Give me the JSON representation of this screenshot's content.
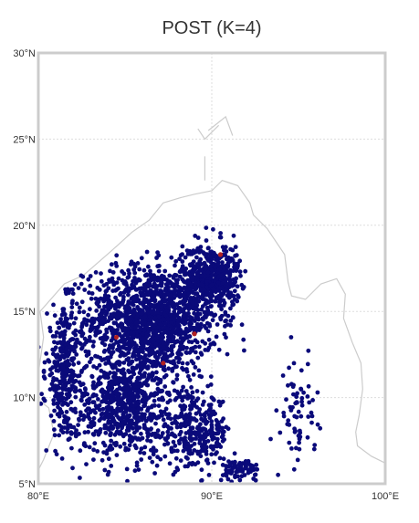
{
  "title": "POST (K=4)",
  "chart_data": {
    "type": "scatter",
    "title": "POST (K=4)",
    "projection": "plate carree map",
    "xlim": [
      80,
      100
    ],
    "ylim": [
      5,
      30
    ],
    "xticks": [
      80,
      90,
      100
    ],
    "xtick_labels": [
      "80°E",
      "90°E",
      "100°E"
    ],
    "yticks": [
      5,
      10,
      15,
      20,
      25,
      30
    ],
    "ytick_labels": [
      "5°N",
      "10°N",
      "15°N",
      "20°N",
      "25°N",
      "30°N"
    ],
    "grid": true,
    "point_color": "#0a0a7a",
    "centroid_color": "#b22222",
    "coastline_color": "#cccccc",
    "frame_color": "#cccccc",
    "centroids": [
      {
        "lon": 90.5,
        "lat": 18.3
      },
      {
        "lon": 89.0,
        "lat": 13.7
      },
      {
        "lon": 87.2,
        "lat": 12.0
      },
      {
        "lon": 84.5,
        "lat": 13.5
      }
    ],
    "clusters": [
      {
        "lon": 86.5,
        "lat": 14.5,
        "spread": [
          3.2,
          2.6
        ],
        "n": 1400
      },
      {
        "lon": 90.0,
        "lat": 17.0,
        "spread": [
          1.4,
          1.6
        ],
        "n": 500
      },
      {
        "lon": 85.0,
        "lat": 9.5,
        "spread": [
          2.5,
          2.5
        ],
        "n": 700
      },
      {
        "lon": 81.5,
        "lat": 11.5,
        "spread": [
          0.9,
          3.0
        ],
        "n": 300
      },
      {
        "lon": 89.0,
        "lat": 8.0,
        "spread": [
          1.8,
          1.8
        ],
        "n": 300
      },
      {
        "lon": 95.0,
        "lat": 9.0,
        "spread": [
          0.8,
          2.5
        ],
        "n": 70
      },
      {
        "lon": 91.5,
        "lat": 5.8,
        "spread": [
          1.0,
          0.6
        ],
        "n": 80
      }
    ]
  }
}
